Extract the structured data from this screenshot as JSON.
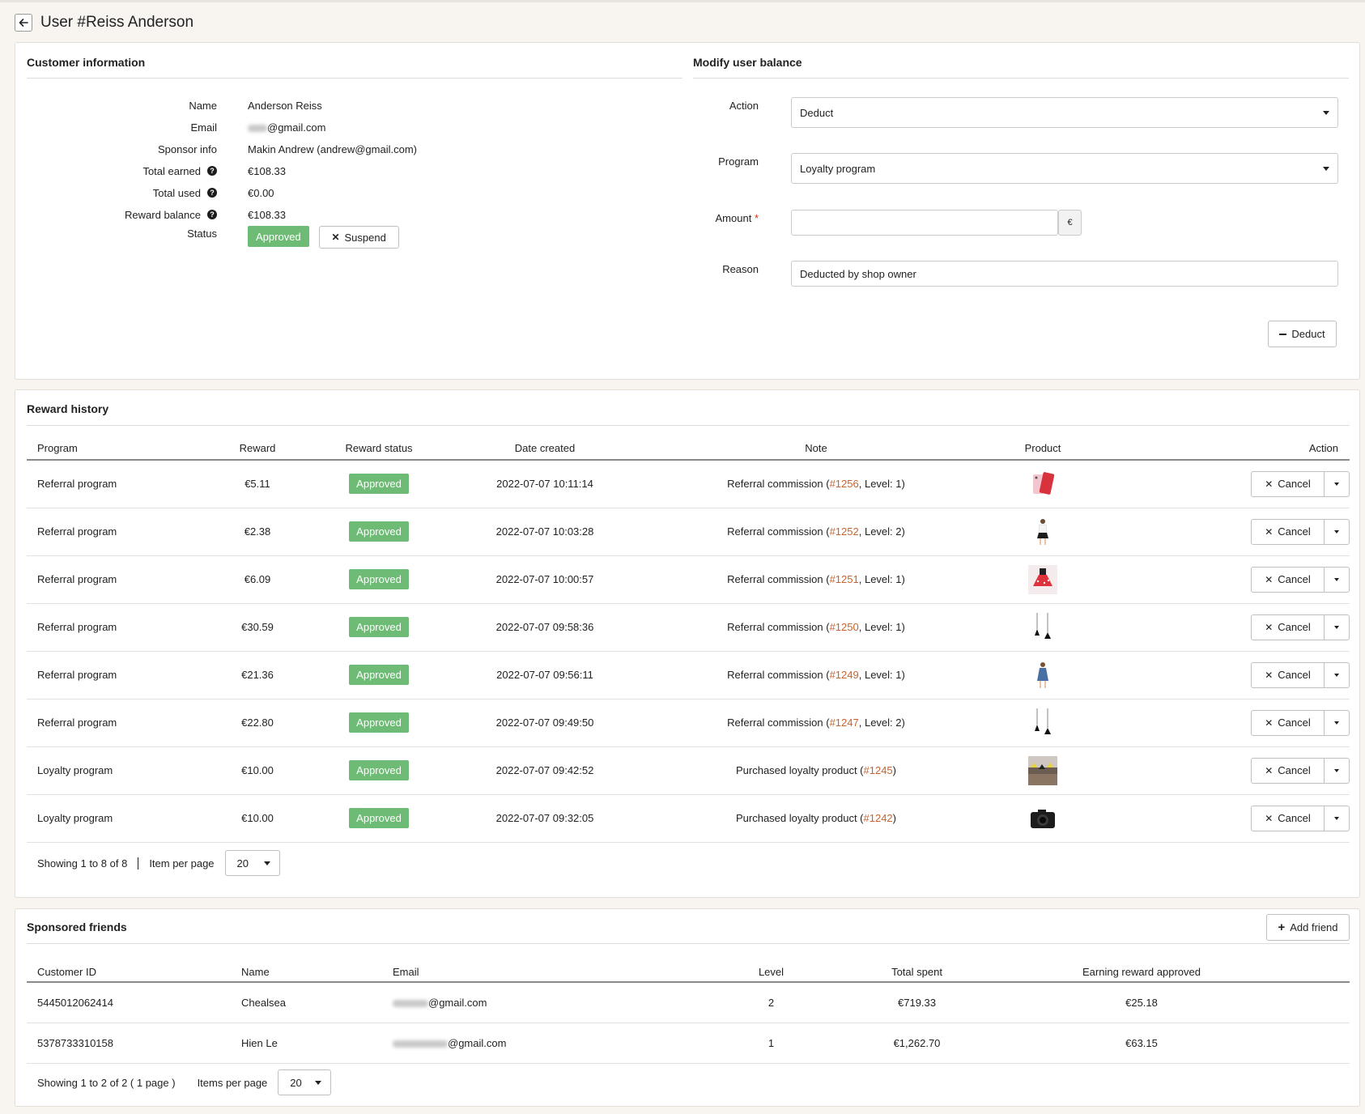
{
  "header": {
    "title": "User #Reiss Anderson"
  },
  "customer_info": {
    "title": "Customer information",
    "labels": {
      "name": "Name",
      "email": "Email",
      "sponsor": "Sponsor info",
      "total_earned": "Total earned",
      "total_used": "Total used",
      "reward_balance": "Reward balance",
      "status": "Status"
    },
    "name": "Anderson Reiss",
    "email_suffix": "@gmail.com",
    "sponsor": "Makin Andrew (andrew@gmail.com)",
    "total_earned": "€108.33",
    "total_used": "€0.00",
    "reward_balance": "€108.33",
    "status": "Approved",
    "suspend_label": "Suspend"
  },
  "modify_balance": {
    "title": "Modify user balance",
    "action_label": "Action",
    "action_value": "Deduct",
    "program_label": "Program",
    "program_value": "Loyalty program",
    "amount_label": "Amount",
    "required_mark": "*",
    "amount_value": "",
    "currency": "€",
    "reason_label": "Reason",
    "reason_value": "Deducted by shop owner",
    "submit_label": "Deduct"
  },
  "reward_history": {
    "title": "Reward history",
    "columns": [
      "Program",
      "Reward",
      "Reward status",
      "Date created",
      "Note",
      "Product",
      "Action"
    ],
    "rows": [
      {
        "program": "Referral program",
        "reward": "€5.11",
        "status": "Approved",
        "date": "2022-07-07 10:11:14",
        "note_pre": "Referral commission (",
        "order": "#1256",
        "note_post": ", Level: 1)",
        "product_icon": "phone-case-icon",
        "action": "Cancel"
      },
      {
        "program": "Referral program",
        "reward": "€2.38",
        "status": "Approved",
        "date": "2022-07-07 10:03:28",
        "note_pre": "Referral commission (",
        "order": "#1252",
        "note_post": ", Level: 2)",
        "product_icon": "skirt-icon",
        "action": "Cancel"
      },
      {
        "program": "Referral program",
        "reward": "€6.09",
        "status": "Approved",
        "date": "2022-07-07 10:00:57",
        "note_pre": "Referral commission (",
        "order": "#1251",
        "note_post": ", Level: 1)",
        "product_icon": "red-dress-icon",
        "action": "Cancel"
      },
      {
        "program": "Referral program",
        "reward": "€30.59",
        "status": "Approved",
        "date": "2022-07-07 09:58:36",
        "note_pre": "Referral commission (",
        "order": "#1250",
        "note_post": ", Level: 1)",
        "product_icon": "pendant-lamp-icon",
        "action": "Cancel"
      },
      {
        "program": "Referral program",
        "reward": "€21.36",
        "status": "Approved",
        "date": "2022-07-07 09:56:11",
        "note_pre": "Referral commission (",
        "order": "#1249",
        "note_post": ", Level: 1)",
        "product_icon": "denim-dress-icon",
        "action": "Cancel"
      },
      {
        "program": "Referral program",
        "reward": "€22.80",
        "status": "Approved",
        "date": "2022-07-07 09:49:50",
        "note_pre": "Referral commission (",
        "order": "#1247",
        "note_post": ", Level: 2)",
        "product_icon": "pendant-lamp-icon",
        "action": "Cancel"
      },
      {
        "program": "Loyalty program",
        "reward": "€10.00",
        "status": "Approved",
        "date": "2022-07-07 09:42:52",
        "note_pre": "Purchased loyalty product (",
        "order": "#1245",
        "note_post": ")",
        "product_icon": "lights-photo-icon",
        "action": "Cancel"
      },
      {
        "program": "Loyalty program",
        "reward": "€10.00",
        "status": "Approved",
        "date": "2022-07-07 09:32:05",
        "note_pre": "Purchased loyalty product (",
        "order": "#1242",
        "note_post": ")",
        "product_icon": "camera-icon",
        "action": "Cancel"
      }
    ],
    "showing": "Showing 1 to 8 of 8",
    "per_page_label": "Item per page",
    "per_page_value": "20"
  },
  "sponsored_friends": {
    "title": "Sponsored friends",
    "add_label": "Add friend",
    "columns": [
      "Customer ID",
      "Name",
      "Email",
      "Level",
      "Total spent",
      "Earning reward approved"
    ],
    "rows": [
      {
        "customer_id": "5445012062414",
        "name": "Chealsea",
        "email_suffix": "@gmail.com",
        "level": "2",
        "total_spent": "€719.33",
        "earning": "€25.18"
      },
      {
        "customer_id": "5378733310158",
        "name": "Hien Le",
        "email_suffix": "@gmail.com",
        "level": "1",
        "total_spent": "€1,262.70",
        "earning": "€63.15"
      }
    ],
    "showing": "Showing 1 to 2 of 2 ( 1 page )",
    "per_page_label": "Items per page",
    "per_page_value": "20"
  },
  "colors": {
    "accent": "#c4642f",
    "approved": "#6ebb75",
    "background": "#f8f5f1"
  }
}
